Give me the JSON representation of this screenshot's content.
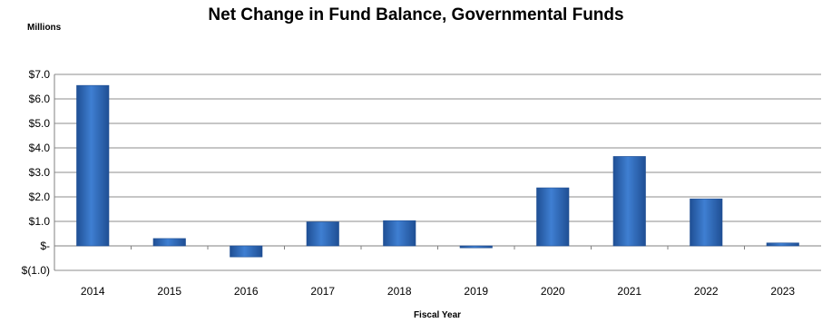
{
  "chart_data": {
    "type": "bar",
    "title": "Net Change in Fund Balance, Governmental Funds",
    "unit_label": "Millions",
    "xlabel": "Fiscal Year",
    "ylabel": "",
    "categories": [
      "2014",
      "2015",
      "2016",
      "2017",
      "2018",
      "2019",
      "2020",
      "2021",
      "2022",
      "2023"
    ],
    "values": [
      6.55,
      0.3,
      -0.45,
      0.98,
      1.03,
      -0.08,
      2.37,
      3.65,
      1.92,
      0.12
    ],
    "ylim": [
      -1.0,
      7.0
    ],
    "yticks": [
      -1.0,
      0,
      1.0,
      2.0,
      3.0,
      4.0,
      5.0,
      6.0,
      7.0
    ],
    "ytick_labels": [
      "$(1.0)",
      "$-",
      "$1.0",
      "$2.0",
      "$3.0",
      "$4.0",
      "$5.0",
      "$6.0",
      "$7.0"
    ],
    "grid": true,
    "legend": "none",
    "bar_color": "#3f7fd2",
    "bar_color_dark": "#1f4f94",
    "grid_color": "#8c8c8c",
    "axis_color": "#808080"
  }
}
